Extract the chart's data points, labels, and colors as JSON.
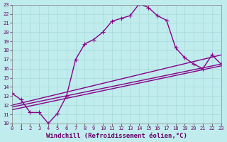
{
  "xlabel": "Windchill (Refroidissement éolien,°C)",
  "xlim": [
    0,
    23
  ],
  "ylim": [
    10,
    23
  ],
  "xticks": [
    0,
    1,
    2,
    3,
    4,
    5,
    6,
    7,
    8,
    9,
    10,
    11,
    12,
    13,
    14,
    15,
    16,
    17,
    18,
    19,
    20,
    21,
    22,
    23
  ],
  "yticks": [
    10,
    11,
    12,
    13,
    14,
    15,
    16,
    17,
    18,
    19,
    20,
    21,
    22,
    23
  ],
  "bg_color": "#c0ecee",
  "line_color": "#880088",
  "grid_color": "#a8d8d8",
  "line1_x": [
    0,
    1,
    2,
    3,
    4,
    5,
    6,
    7,
    8,
    9,
    10,
    11,
    12,
    13,
    14,
    15,
    16,
    17,
    18,
    19,
    20,
    21,
    22,
    23
  ],
  "line1_y": [
    13.3,
    12.6,
    11.2,
    11.2,
    10.0,
    11.1,
    13.0,
    17.0,
    18.7,
    19.2,
    20.0,
    21.2,
    21.5,
    21.8,
    23.1,
    22.7,
    21.8,
    21.3,
    18.3,
    17.2,
    16.5,
    16.0,
    17.5,
    16.5
  ],
  "line2_x": [
    0,
    23
  ],
  "line2_y": [
    12.0,
    17.5
  ],
  "line3_x": [
    0,
    23
  ],
  "line3_y": [
    11.8,
    16.5
  ],
  "line4_x": [
    0,
    23
  ],
  "line4_y": [
    11.5,
    16.3
  ],
  "fontsize_xlabel": 6.5,
  "fontsize_ticks": 5.0,
  "markersize": 2.8,
  "linewidth": 1.0
}
